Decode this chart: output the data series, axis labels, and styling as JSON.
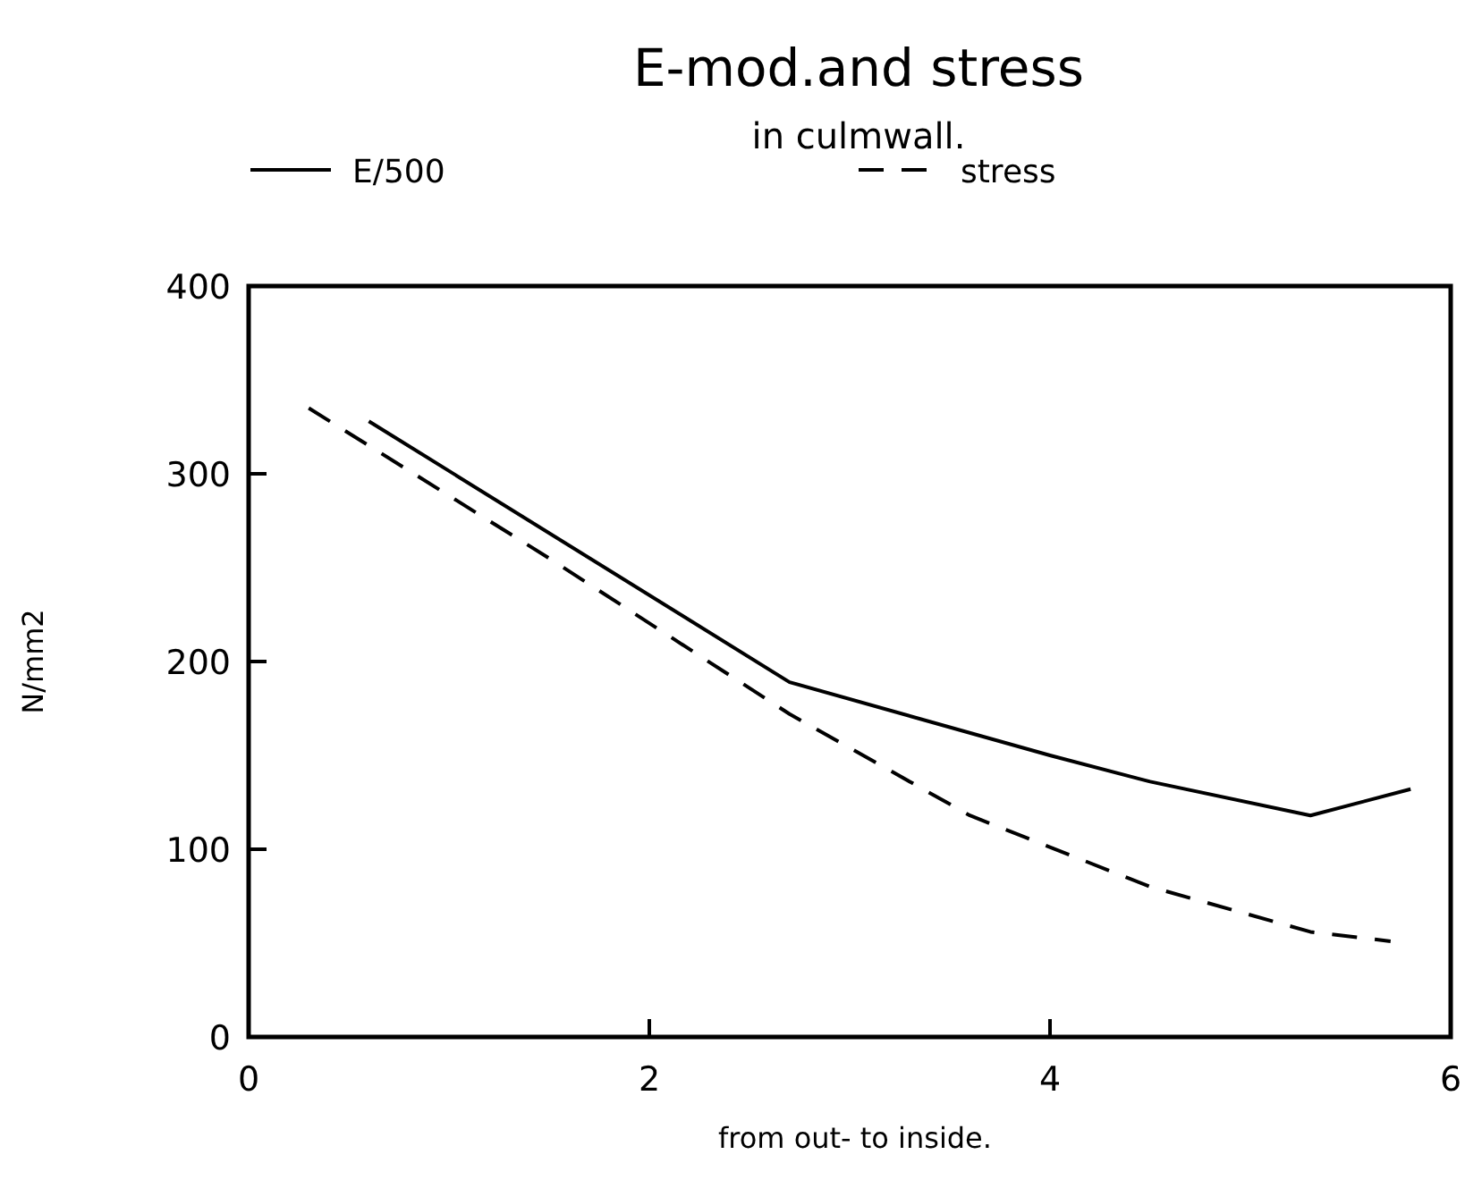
{
  "chart_data": {
    "type": "line",
    "title": "E-mod.and stress",
    "subtitle": "in culmwall.",
    "xlabel": "from out- to inside.",
    "ylabel": "N/mm2",
    "xlim": [
      0,
      6
    ],
    "xticks": [
      0,
      2,
      4,
      6
    ],
    "ylim": [
      0,
      400
    ],
    "yticks": [
      0,
      100,
      200,
      300,
      400
    ],
    "legend": "top",
    "grid": false,
    "series": [
      {
        "name": "E/500",
        "color": "#000000",
        "line_style": "solid",
        "x": [
          0.6,
          2.7,
          4.0,
          4.5,
          5.3,
          5.8
        ],
        "values": [
          328,
          189,
          150,
          136,
          118,
          132
        ]
      },
      {
        "name": "stress",
        "color": "#000000",
        "line_style": "dashed",
        "x": [
          0.3,
          1.5,
          2.7,
          3.6,
          4.5,
          5.3,
          5.7
        ],
        "values": [
          335,
          255,
          172,
          118,
          80,
          56,
          51
        ]
      }
    ]
  }
}
